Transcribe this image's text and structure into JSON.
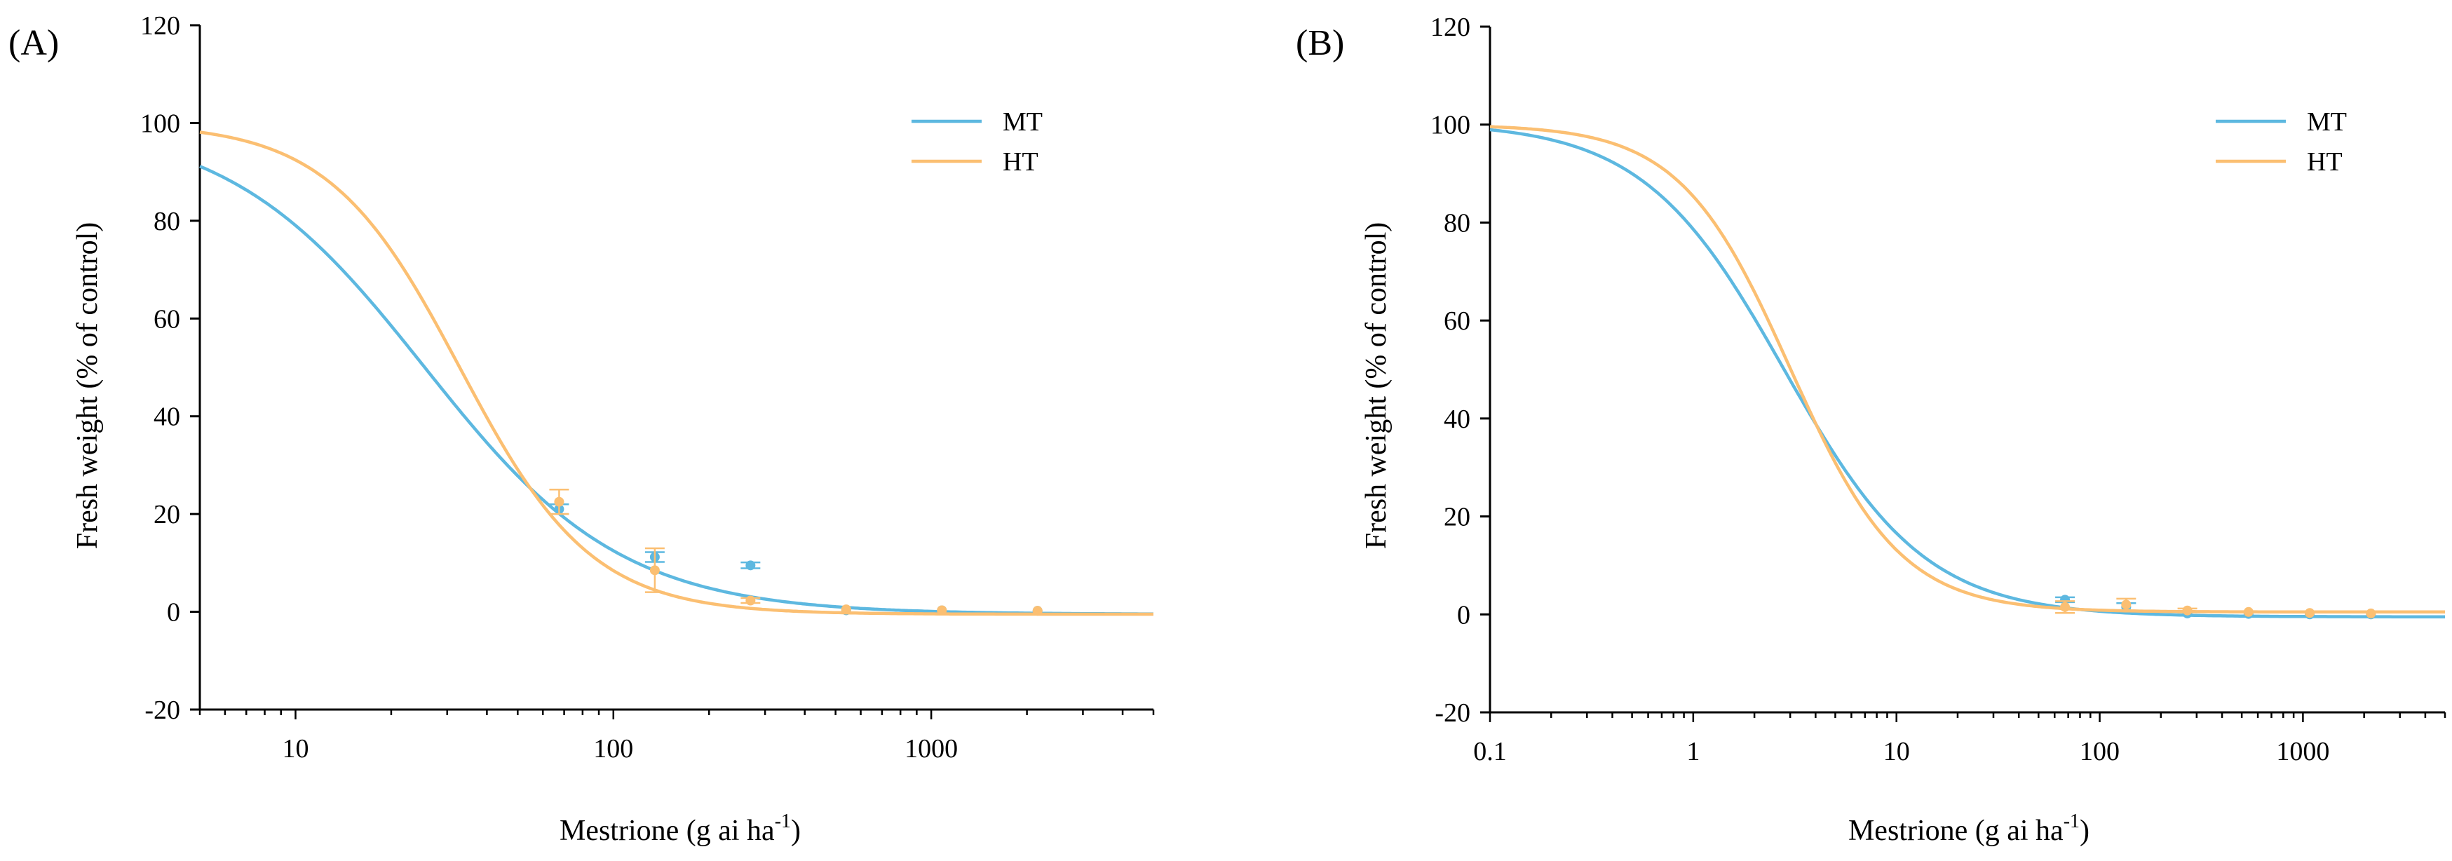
{
  "colors": {
    "MT": "#5db8e0",
    "HT": "#fbbf72",
    "axis": "#000000"
  },
  "chart_data": [
    {
      "type": "line",
      "panel_label": "(A)",
      "xscale": "log",
      "xlim": [
        5,
        5000
      ],
      "ylim": [
        -20,
        120
      ],
      "yticks": [
        -20,
        0,
        20,
        40,
        60,
        80,
        100,
        120
      ],
      "xticks": [
        10,
        100,
        1000
      ],
      "xtick_labels": [
        "10",
        "100",
        "1000"
      ],
      "ylabel": "Fresh weight (% of control)",
      "xlabel": {
        "main": "Mestrione (g ai ha",
        "sup": "-1",
        "close": ")"
      },
      "legend": {
        "position": "top-right"
      },
      "series": [
        {
          "name": "MT",
          "fit": {
            "c": -0.5,
            "d": 100.5,
            "ed50": 25.5,
            "b": 1.4
          },
          "points": [
            {
              "x": 67.5,
              "y": 21.0,
              "err": 1.0
            },
            {
              "x": 135,
              "y": 11.2,
              "err": 1.0
            },
            {
              "x": 270,
              "y": 9.5,
              "err": 0.6
            },
            {
              "x": 540,
              "y": 0.3,
              "err": 0.3
            },
            {
              "x": 1080,
              "y": 0.3,
              "err": 0.3
            },
            {
              "x": 2160,
              "y": 0.2,
              "err": 0.2
            }
          ]
        },
        {
          "name": "HT",
          "fit": {
            "c": -0.5,
            "d": 100.0,
            "ed50": 33.0,
            "b": 2.1
          },
          "points": [
            {
              "x": 67.5,
              "y": 22.5,
              "err": 2.5
            },
            {
              "x": 135,
              "y": 8.5,
              "err": 4.5
            },
            {
              "x": 270,
              "y": 2.3,
              "err": 0.5
            },
            {
              "x": 540,
              "y": 0.5,
              "err": 0.3
            },
            {
              "x": 1080,
              "y": 0.3,
              "err": 0.2
            },
            {
              "x": 2160,
              "y": 0.2,
              "err": 0.2
            }
          ]
        }
      ]
    },
    {
      "type": "line",
      "panel_label": "(B)",
      "xscale": "log",
      "xlim": [
        0.1,
        5000
      ],
      "ylim": [
        -20,
        120
      ],
      "yticks": [
        -20,
        0,
        20,
        40,
        60,
        80,
        100,
        120
      ],
      "xticks": [
        0.1,
        1,
        10,
        100,
        1000
      ],
      "xtick_labels": [
        "0.1",
        "1",
        "10",
        "100",
        "1000"
      ],
      "ylabel": "Fresh weight (% of control)",
      "xlabel": {
        "main": "Mestrione (g ai ha",
        "sup": "-1",
        "close": ")"
      },
      "legend": {
        "position": "top-right"
      },
      "series": [
        {
          "name": "MT",
          "fit": {
            "c": -0.5,
            "d": 100.5,
            "ed50": 2.8,
            "b": 1.25
          },
          "points": [
            {
              "x": 67.5,
              "y": 3.0,
              "err": 0.5
            },
            {
              "x": 135,
              "y": 1.5,
              "err": 0.8
            },
            {
              "x": 270,
              "y": 0.2,
              "err": 0.2
            },
            {
              "x": 540,
              "y": 0.1,
              "err": 0.2
            },
            {
              "x": 1080,
              "y": 0.0,
              "err": 0.2
            },
            {
              "x": 2160,
              "y": 0.0,
              "err": 0.2
            }
          ]
        },
        {
          "name": "HT",
          "fit": {
            "c": 0.5,
            "d": 100.0,
            "ed50": 3.0,
            "b": 1.6
          },
          "points": [
            {
              "x": 67.5,
              "y": 1.5,
              "err": 1.2
            },
            {
              "x": 135,
              "y": 2.0,
              "err": 1.2
            },
            {
              "x": 270,
              "y": 0.8,
              "err": 0.4
            },
            {
              "x": 540,
              "y": 0.5,
              "err": 0.3
            },
            {
              "x": 1080,
              "y": 0.3,
              "err": 0.2
            },
            {
              "x": 2160,
              "y": 0.2,
              "err": 0.2
            }
          ]
        }
      ]
    }
  ]
}
